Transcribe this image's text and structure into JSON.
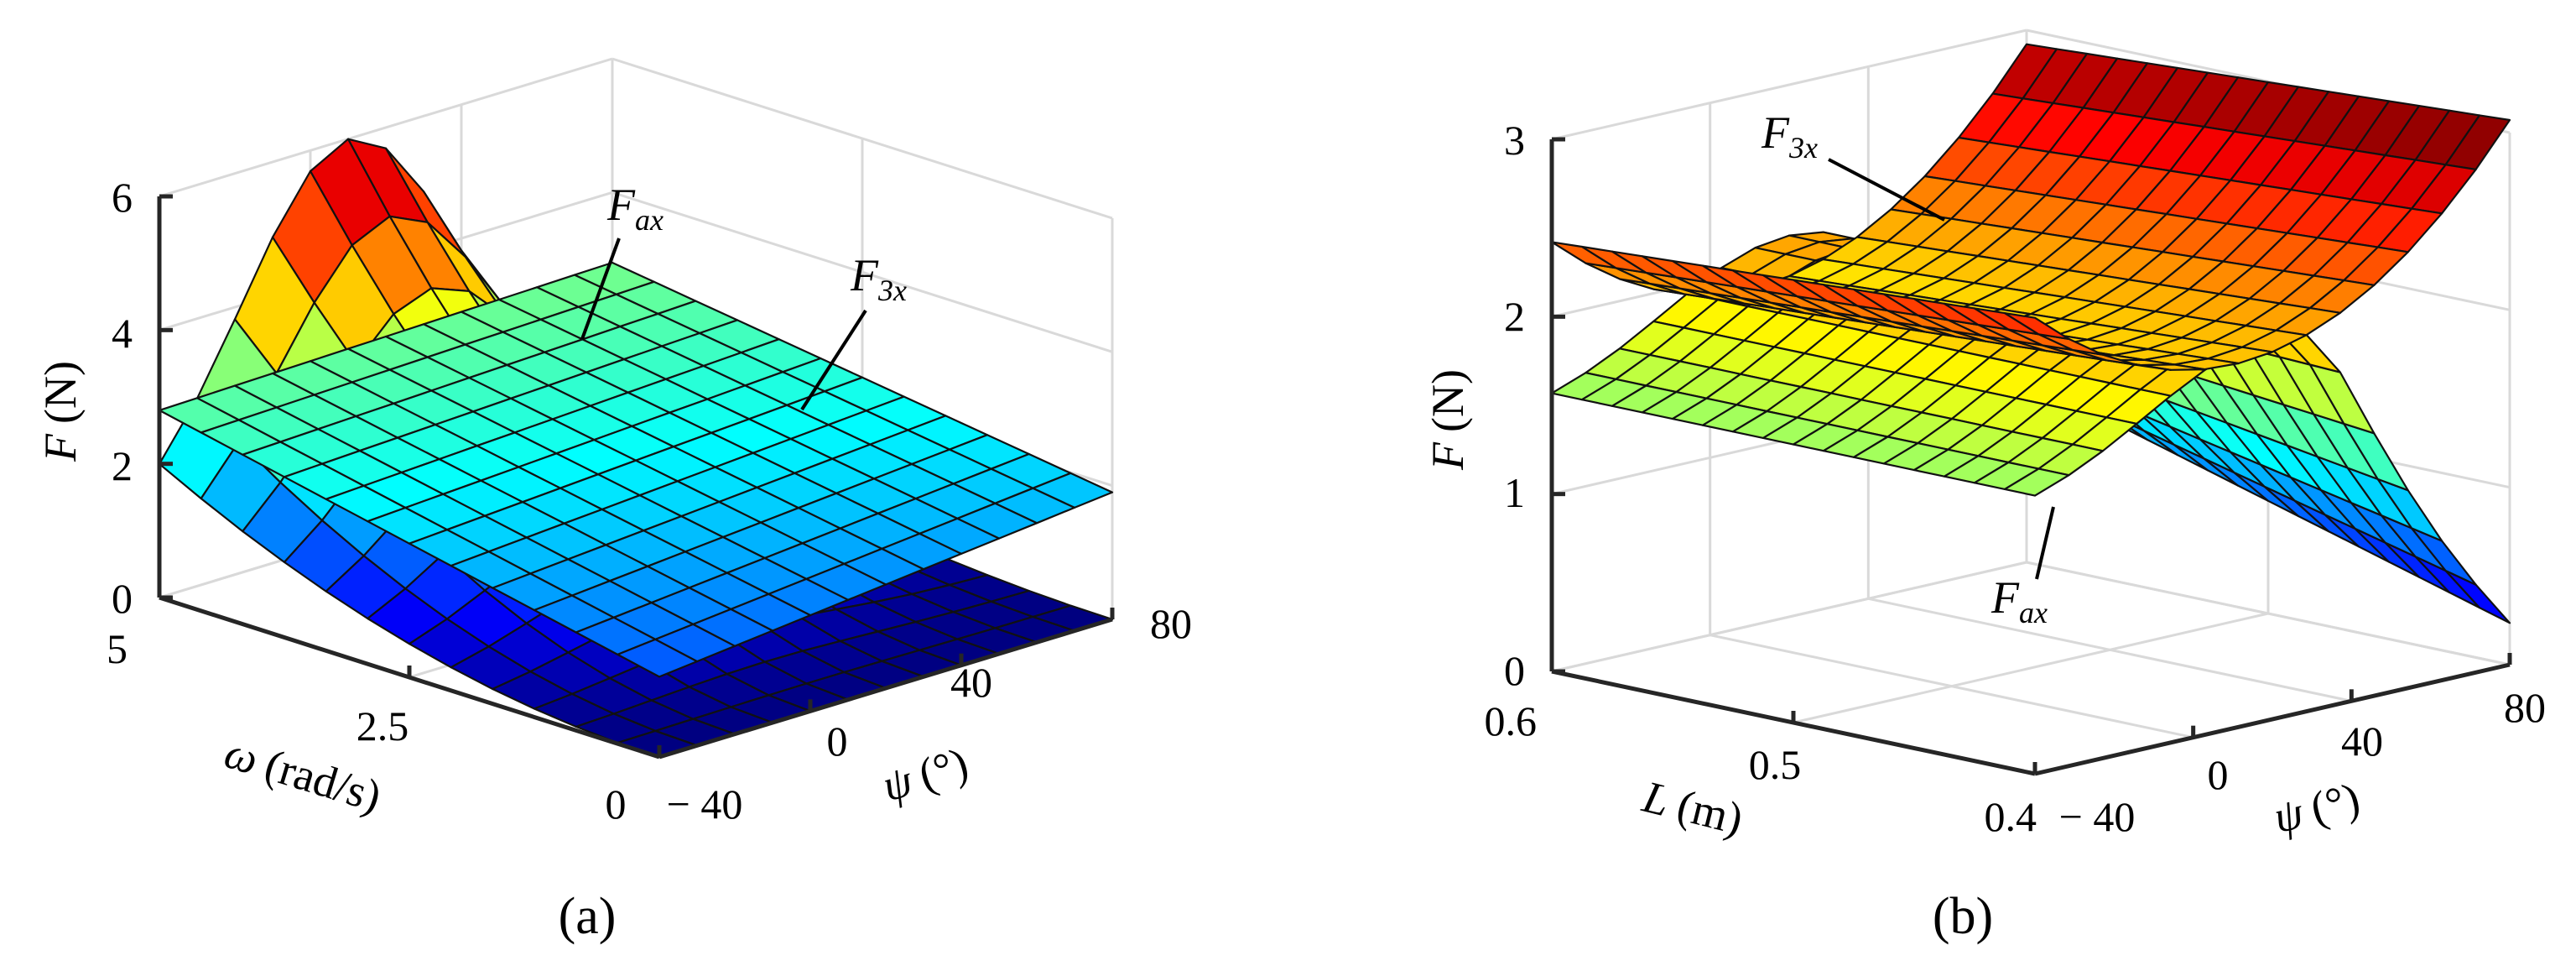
{
  "figure": {
    "panel_a_label": "(a)",
    "panel_b_label": "(b)"
  },
  "chart_data": [
    {
      "type": "surface3d",
      "panel": "(a)",
      "zlabel": "F (N)",
      "zlabel_var": "F",
      "zlabel_unit": "(N)",
      "xlabel": "ω (rad/s)",
      "xlabel_var": "ω",
      "xlabel_unit": "(rad/s)",
      "ylabel": "ψ (°)",
      "ylabel_var": "ψ",
      "ylabel_unit": "(°)",
      "zlim": [
        0,
        6
      ],
      "xlim": [
        0,
        5
      ],
      "ylim": [
        -40,
        80
      ],
      "z_ticks": [
        "0",
        "2",
        "4",
        "6"
      ],
      "x_ticks": [
        "5",
        "2.5",
        "0"
      ],
      "y_ticks": [
        "− 40",
        "0",
        "40",
        "80"
      ],
      "grid": true,
      "colormap": "jet",
      "series": [
        {
          "name": "F_ax",
          "label_main": "F",
          "label_sub": "ax",
          "omega": [
            0,
            0.5,
            1,
            1.5,
            2,
            2.5,
            3,
            3.5,
            4,
            4.5,
            5
          ],
          "psi": [
            -40,
            -30,
            -20,
            -10,
            0,
            10,
            20,
            30,
            40,
            50,
            60,
            70,
            80
          ],
          "description_values": "F_ax rises with omega squared, peaking at psi ≈ 10° with about 6 N at omega = 5 rad/s; near 0 at omega = 0",
          "peak": 6.0,
          "peak_omega": 5,
          "peak_psi": 10
        },
        {
          "name": "F_3x",
          "label_main": "F",
          "label_sub": "3x",
          "omega": [
            0,
            0.5,
            1,
            1.5,
            2,
            2.5,
            3,
            3.5,
            4,
            4.5,
            5
          ],
          "psi": [
            -40,
            -30,
            -20,
            -10,
            0,
            10,
            20,
            30,
            40,
            50,
            60,
            70,
            80
          ],
          "z_at_omega5_psi_minus40": 2.8,
          "z_at_omega0_psi_minus40": 1.2,
          "z_at_omega5_psi80": 2.9,
          "z_at_omega0_psi80": 1.9
        }
      ]
    },
    {
      "type": "surface3d",
      "panel": "(b)",
      "zlabel": "F (N)",
      "zlabel_var": "F",
      "zlabel_unit": "(N)",
      "xlabel": "L (m)",
      "xlabel_var": "L",
      "xlabel_unit": "(m)",
      "ylabel": "ψ (°)",
      "ylabel_var": "ψ",
      "ylabel_unit": "(°)",
      "zlim": [
        0,
        3
      ],
      "xlim": [
        0.4,
        0.6
      ],
      "ylim": [
        -40,
        80
      ],
      "z_ticks": [
        "0",
        "1",
        "2",
        "3"
      ],
      "x_ticks": [
        "0.6",
        "0.5",
        "0.4"
      ],
      "y_ticks": [
        "− 40",
        "0",
        "40",
        "80"
      ],
      "grid": true,
      "colormap": "jet",
      "series": [
        {
          "name": "F_ax",
          "label_main": "F",
          "label_sub": "ax",
          "L": [
            0.4,
            0.42,
            0.44,
            0.46,
            0.48,
            0.5,
            0.52,
            0.54,
            0.56,
            0.58,
            0.6
          ],
          "psi": [
            -40,
            -30,
            -20,
            -10,
            0,
            10,
            20,
            30,
            40,
            50,
            60,
            70,
            80
          ],
          "z_at_L06_psi_minus40": 1.45,
          "z_peak": 2.15,
          "z_at_L04_psi80": 0.2
        },
        {
          "name": "F_3x",
          "label_main": "F",
          "label_sub": "3x",
          "L": [
            0.4,
            0.42,
            0.44,
            0.46,
            0.48,
            0.5,
            0.52,
            0.54,
            0.56,
            0.58,
            0.6
          ],
          "psi": [
            -40,
            -30,
            -20,
            -10,
            0,
            10,
            20,
            30,
            40,
            50,
            60,
            70,
            80
          ],
          "z_at_L06_psi_minus40": 2.65,
          "z_at_L04_psi80": 2.85,
          "z_min": 1.9
        }
      ]
    }
  ]
}
